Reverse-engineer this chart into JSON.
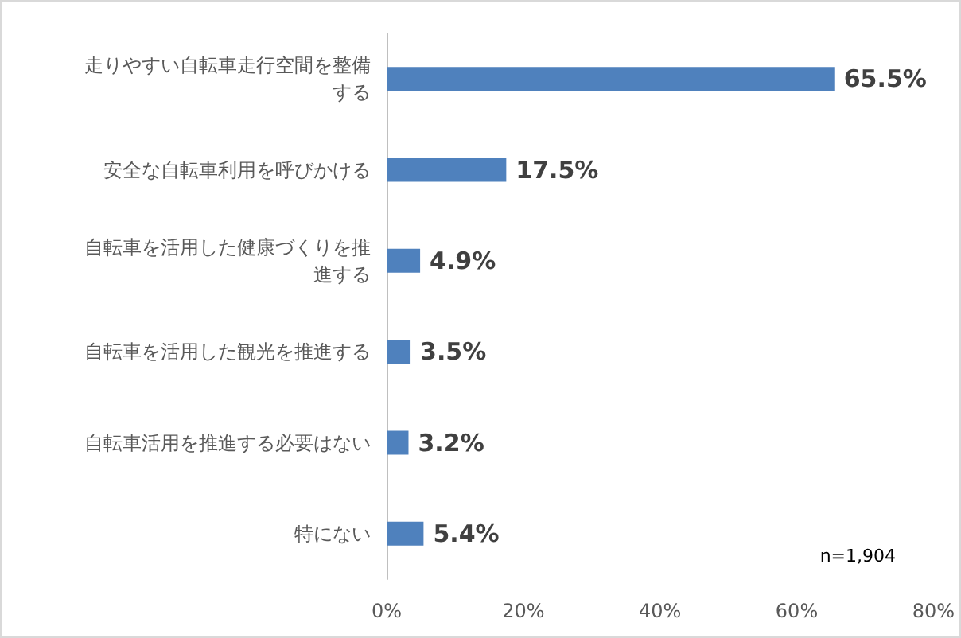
{
  "chart_data": {
    "type": "bar",
    "orientation": "horizontal",
    "categories": [
      "走りやすい自転車走行空間を整備する",
      "安全な自転車利用を呼びかける",
      "自転車を活用した健康づくりを推進する",
      "自転車を活用した観光を推進する",
      "自転車活用を推進する必要はない",
      "特にない"
    ],
    "values": [
      65.5,
      17.5,
      4.9,
      3.5,
      3.2,
      5.4
    ],
    "value_labels": [
      "65.5%",
      "17.5%",
      "4.9%",
      "3.5%",
      "3.2%",
      "5.4%"
    ],
    "color": "#4f81bd",
    "xlim": [
      0,
      80
    ],
    "xticks": [
      {
        "value": 0,
        "label": "0%"
      },
      {
        "value": 20,
        "label": "20%"
      },
      {
        "value": 40,
        "label": "40%"
      },
      {
        "value": 60,
        "label": "60%"
      },
      {
        "value": 80,
        "label": "80%"
      }
    ],
    "grid": false,
    "annotations": [
      "n=1,904"
    ]
  }
}
